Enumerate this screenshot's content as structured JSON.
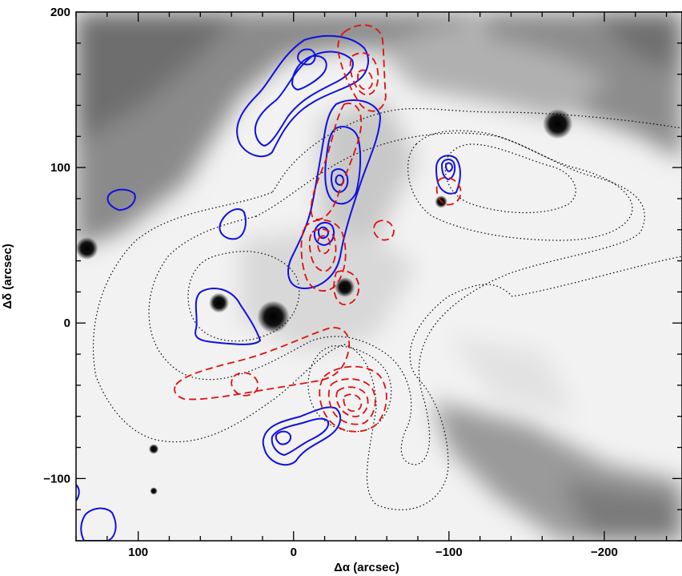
{
  "figure": {
    "xlabel": "Δα (arcsec)",
    "ylabel": "Δδ (arcsec)"
  },
  "chart_data": {
    "type": "scatter",
    "title": "",
    "xlabel": "Δα (arcsec)",
    "ylabel": "Δδ (arcsec)",
    "xlim": [
      140,
      -250
    ],
    "ylim": [
      -140,
      200
    ],
    "x_ticks": [
      100,
      0,
      -100,
      -200
    ],
    "x_tick_labels": [
      "100",
      "0",
      "−100",
      "−200"
    ],
    "y_ticks": [
      200,
      100,
      0,
      -100
    ],
    "y_tick_labels": [
      "200",
      "100",
      "0",
      "−100"
    ],
    "grid": false,
    "legend": "none",
    "background": "greyscale image",
    "contour_colors": {
      "blue": "#1010e0",
      "red": "#e01010",
      "black": "#000000"
    },
    "stars": [
      {
        "x": 133,
        "y": 48,
        "r": 9
      },
      {
        "x": 48,
        "y": 13,
        "r": 8
      },
      {
        "x": 13,
        "y": 4,
        "r": 13
      },
      {
        "x": -33,
        "y": 23,
        "r": 8
      },
      {
        "x": -170,
        "y": 128,
        "r": 12
      },
      {
        "x": -95,
        "y": 78,
        "r": 5
      },
      {
        "x": 90,
        "y": -81,
        "r": 4
      },
      {
        "x": 90,
        "y": -108,
        "r": 3
      }
    ]
  }
}
